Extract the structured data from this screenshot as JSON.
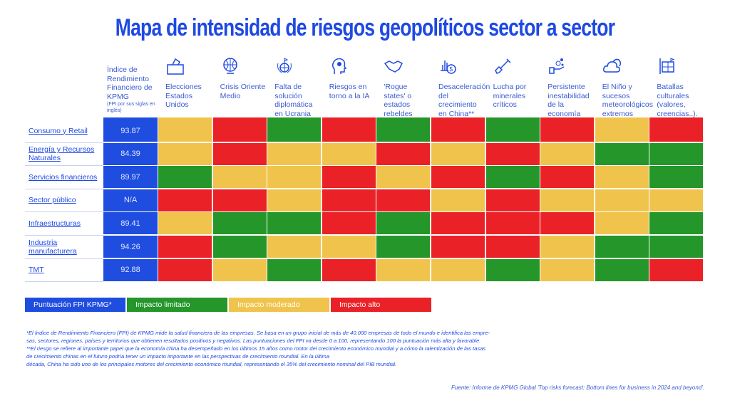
{
  "title": "Mapa de intensidad de riesgos geopolíticos sector a sector",
  "fpi_header": {
    "label": "Índice de Rendimiento Financiero de KPMG",
    "sub": "(FPI por sus siglas en inglés)"
  },
  "colors": {
    "G": "#24962a",
    "Y": "#f0c44c",
    "R": "#ea2127",
    "blue": "#1f4de0"
  },
  "columns": [
    {
      "label": "Elecciones Estados Unidos",
      "icon": "ballot-box-icon"
    },
    {
      "label": "Crisis Oriente Medio",
      "icon": "globe-icon"
    },
    {
      "label": "Falta de solución diplomática en Ucrania",
      "icon": "peace-globe-icon"
    },
    {
      "label": "Riesgos en torno a la IA",
      "icon": "ai-head-icon"
    },
    {
      "label": "'Rogue states' o estados rebeldes",
      "icon": "handshake-icon"
    },
    {
      "label": "Desaceleración del crecimiento en China**",
      "icon": "chart-coin-icon"
    },
    {
      "label": "Lucha por minerales críticos",
      "icon": "shovel-icon"
    },
    {
      "label": "Persistente inestabilidad de la economía global",
      "icon": "hand-coins-icon"
    },
    {
      "label": "El Niño y sucesos meteorológicos extremos",
      "icon": "cloud-sun-icon"
    },
    {
      "label": "Batallas culturales (valores, creencias..).",
      "icon": "culture-board-icon"
    }
  ],
  "rows": [
    {
      "label": "Consumo y Retail",
      "score": "93.87",
      "cells": [
        "Y",
        "R",
        "G",
        "R",
        "G",
        "R",
        "G",
        "R",
        "Y",
        "R"
      ]
    },
    {
      "label": "Energía y Recursos Naturales",
      "score": "84.39",
      "cells": [
        "Y",
        "R",
        "Y",
        "Y",
        "R",
        "Y",
        "R",
        "Y",
        "G",
        "G"
      ]
    },
    {
      "label": "Servicios financieros",
      "score": "89.97",
      "cells": [
        "G",
        "Y",
        "Y",
        "R",
        "Y",
        "R",
        "G",
        "R",
        "Y",
        "G"
      ]
    },
    {
      "label": "Sector público",
      "score": "N/A",
      "cells": [
        "R",
        "R",
        "Y",
        "R",
        "R",
        "Y",
        "R",
        "Y",
        "Y",
        "Y"
      ]
    },
    {
      "label": "Infraestructuras",
      "score": "89.41",
      "cells": [
        "Y",
        "G",
        "G",
        "R",
        "G",
        "R",
        "R",
        "R",
        "Y",
        "G"
      ]
    },
    {
      "label": "Industria manufacturera",
      "score": "94.26",
      "cells": [
        "R",
        "G",
        "Y",
        "Y",
        "G",
        "R",
        "R",
        "Y",
        "G",
        "G"
      ]
    },
    {
      "label": "TMT",
      "score": "92.88",
      "cells": [
        "R",
        "Y",
        "G",
        "R",
        "Y",
        "Y",
        "G",
        "Y",
        "G",
        "R"
      ]
    }
  ],
  "legend": [
    "Puntuación FPI KPMG*",
    "Impacto limitado",
    "Impacto moderado",
    "Impacto alto"
  ],
  "notes": [
    "*El Índice de Rendimiento Financiero (FPI) de KPMG mide la salud financiera de las empresas. Se basa en un grupo inicial de más de 40.000 empresas de todo el mundo e identifica las empre-",
    "sas, sectores, regiones, países y territorios que obtienen resultados positivos y negativos. Las puntuaciones del FPI va desde 0 a 100, representando 100 la puntuación más alta y favorable.",
    "**El riesgo se refiere al importante papel que la economía china ha desempeñado en los últimos 15 años como motor del crecimiento económico mundial y a cómo la ralentización de las tasas",
    "de crecimiento chinas en el futuro podría tener un impacto importante en las perspectivas de crecimiento mundial. En la última",
    "década, China ha sido uno de los principales motores del crecimiento económico mundial, representando el 35% del crecimiento nominal del PIB mundial."
  ],
  "source": "Fuente: Informe de KPMG Global 'Top risks forecast: Bottom lines for business in 2024 and beyond'."
}
